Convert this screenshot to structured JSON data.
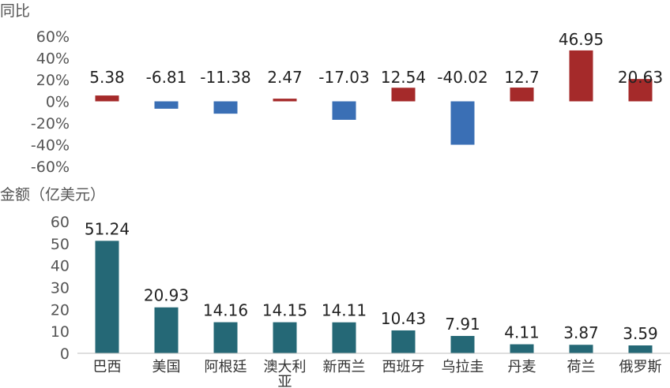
{
  "chart_data": [
    {
      "type": "bar",
      "ylabel": "同比",
      "ylim": [
        -60,
        60
      ],
      "yticks": [
        "60%",
        "40%",
        "20%",
        "0%",
        "-20%",
        "-40%",
        "-60%"
      ],
      "categories": [
        "巴西",
        "美国",
        "阿根廷",
        "澳大利亚",
        "新西兰",
        "西班牙",
        "乌拉圭",
        "丹麦",
        "荷兰",
        "俄罗斯"
      ],
      "values": [
        5.38,
        -6.81,
        -11.38,
        2.47,
        -17.03,
        12.54,
        -40.02,
        12.7,
        46.95,
        20.63
      ],
      "value_labels": [
        "5.38",
        "-6.81",
        "-11.38",
        "2.47",
        "-17.03",
        "12.54",
        "-40.02",
        "12.7",
        "46.95",
        "20.63"
      ],
      "colors": {
        "positive": "#a52a2a",
        "negative": "#3a6fb5"
      }
    },
    {
      "type": "bar",
      "ylabel": "金额（亿美元）",
      "ylim": [
        0,
        60
      ],
      "yticks": [
        "60",
        "50",
        "40",
        "30",
        "20",
        "10",
        "0"
      ],
      "categories": [
        "巴西",
        "美国",
        "阿根廷",
        "澳大利亚",
        "新西兰",
        "西班牙",
        "乌拉圭",
        "丹麦",
        "荷兰",
        "俄罗斯"
      ],
      "values": [
        51.24,
        20.93,
        14.16,
        14.15,
        14.11,
        10.43,
        7.91,
        4.11,
        3.87,
        3.59
      ],
      "value_labels": [
        "51.24",
        "20.93",
        "14.16",
        "14.15",
        "14.11",
        "10.43",
        "7.91",
        "4.11",
        "3.87",
        "3.59"
      ],
      "colors": {
        "bar": "#256876"
      }
    }
  ]
}
